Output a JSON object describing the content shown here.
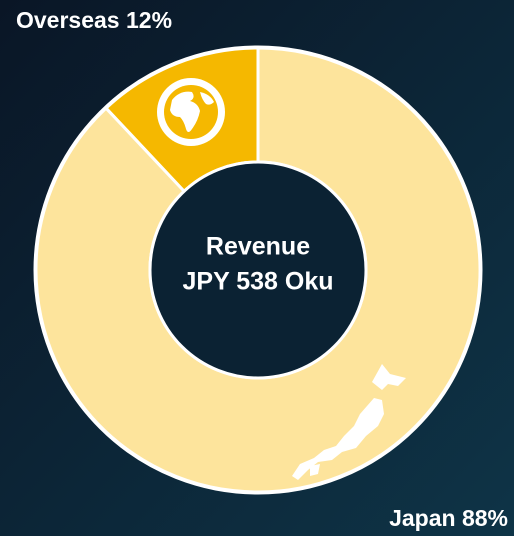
{
  "chart_data": {
    "type": "donut",
    "center_text": [
      "Revenue",
      "JPY 538 Oku"
    ],
    "labels": [
      "Overseas 12%",
      "Japan 88%"
    ],
    "values": [
      12,
      88
    ],
    "colors": [
      "#f5b800",
      "#fde49c"
    ]
  }
}
